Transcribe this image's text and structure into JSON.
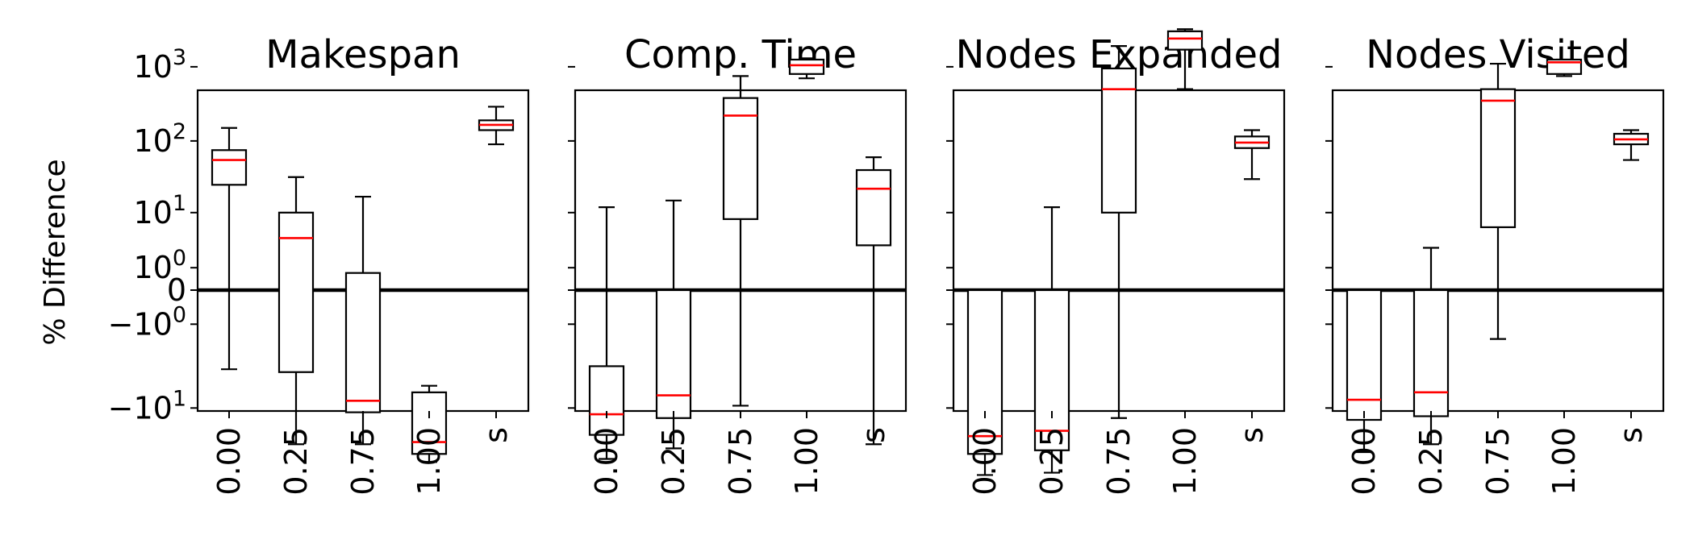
{
  "chart_data": {
    "type": "box",
    "ylabel": "% Difference",
    "yscale": "symlog",
    "linthresh": 1,
    "ylim": [
      -45,
      3500
    ],
    "zero_line": true,
    "grid": false,
    "categories": [
      "0.00",
      "0.25",
      "0.75",
      "1.00",
      "s"
    ],
    "y_ticks": [
      {
        "value": 1000,
        "base": "10",
        "exp": "3"
      },
      {
        "value": 100,
        "base": "10",
        "exp": "2"
      },
      {
        "value": 10,
        "base": "10",
        "exp": "1"
      },
      {
        "value": 1,
        "base": "10",
        "exp": "0"
      },
      {
        "value": 0,
        "base": "0",
        "exp": ""
      },
      {
        "value": -1,
        "base": "−10",
        "exp": "0"
      },
      {
        "value": -10,
        "base": "−10",
        "exp": "1"
      }
    ],
    "panels": [
      {
        "title": "Makespan",
        "boxes": [
          {
            "category": "0.00",
            "whislo": -4,
            "q1": 25,
            "med": 55,
            "q3": 75,
            "whishi": 150
          },
          {
            "category": "0.25",
            "whislo": -22,
            "q1": -4.3,
            "med": 4,
            "q3": 10,
            "whishi": 32
          },
          {
            "category": "0.75",
            "whislo": -22,
            "q1": -11,
            "med": -8.5,
            "q3": 0.7,
            "whishi": 17
          },
          {
            "category": "1.00",
            "whislo": -32,
            "q1": -27,
            "med": -21,
            "q3": -7,
            "whishi": -6
          },
          {
            "category": "s",
            "whislo": 90,
            "q1": 140,
            "med": 165,
            "q3": 190,
            "whishi": 290
          }
        ]
      },
      {
        "title": "Comp. Time",
        "boxes": [
          {
            "category": "0.00",
            "whislo": -30,
            "q1": -18,
            "med": -11.5,
            "q3": -3.7,
            "whishi": 12
          },
          {
            "category": "0.25",
            "whislo": -24,
            "q1": -12.5,
            "med": -7.5,
            "q3": 0,
            "whishi": 15
          },
          {
            "category": "0.75",
            "whislo": -9.5,
            "q1": 8,
            "med": 220,
            "q3": 380,
            "whishi": 750
          },
          {
            "category": "1.00",
            "whislo": 700,
            "q1": 800,
            "med": 1050,
            "q3": 1250,
            "whishi": 1300
          },
          {
            "category": "s",
            "whislo": -22,
            "q1": 3,
            "med": 22,
            "q3": 40,
            "whishi": 60
          }
        ]
      },
      {
        "title": "Nodes Expanded",
        "boxes": [
          {
            "category": "0.00",
            "whislo": -42,
            "q1": -27,
            "med": -18.5,
            "q3": 0,
            "whishi": 0
          },
          {
            "category": "0.25",
            "whislo": -40,
            "q1": -25,
            "med": -16.5,
            "q3": 0,
            "whishi": 12
          },
          {
            "category": "0.75",
            "whislo": -12.5,
            "q1": 10,
            "med": 500,
            "q3": 950,
            "whishi": 1900
          },
          {
            "category": "1.00",
            "whislo": 500,
            "q1": 1700,
            "med": 2400,
            "q3": 3000,
            "whishi": 3200
          },
          {
            "category": "s",
            "whislo": 30,
            "q1": 80,
            "med": 95,
            "q3": 115,
            "whishi": 140
          }
        ]
      },
      {
        "title": "Nodes Visited",
        "boxes": [
          {
            "category": "0.00",
            "whislo": -26,
            "q1": -13,
            "med": -8.3,
            "q3": 0,
            "whishi": 0
          },
          {
            "category": "0.25",
            "whislo": -22,
            "q1": -12,
            "med": -7,
            "q3": 0,
            "whishi": 2.7
          },
          {
            "category": "0.75",
            "whislo": -1.7,
            "q1": 6,
            "med": 350,
            "q3": 500,
            "whishi": 1100
          },
          {
            "category": "1.00",
            "whislo": 750,
            "q1": 800,
            "med": 1150,
            "q3": 1250,
            "whishi": 1250
          },
          {
            "category": "s",
            "whislo": 55,
            "q1": 90,
            "med": 105,
            "q3": 125,
            "whishi": 140
          }
        ]
      }
    ],
    "colors": {
      "box": "#000000",
      "median": "#ff0000",
      "zero_line": "#000000"
    }
  }
}
